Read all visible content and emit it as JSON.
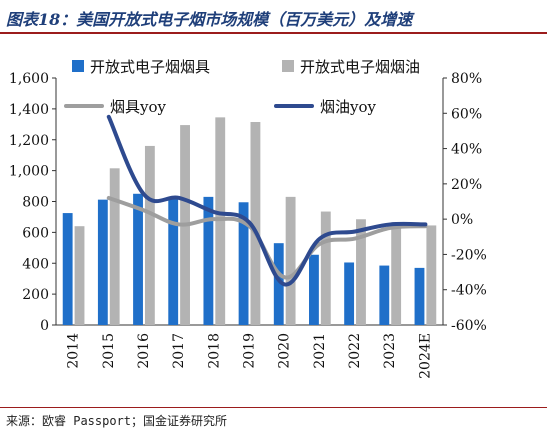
{
  "header": {
    "title": "图表18：美国开放式电子烟市场规模（百万美元）及增速"
  },
  "footer": {
    "source": "来源：欧睿 Passport；国金证券研究所"
  },
  "colors": {
    "bar_closed": "#1f6fc9",
    "bar_open": "#b3b3b3",
    "line_closed": "#9e9e9e",
    "line_open": "#2e4a8f",
    "accent": "#9b1c1c"
  },
  "chart_data": {
    "type": "bar",
    "title": "美国开放式电子烟市场规模（百万美元）及增速",
    "categories": [
      "2014",
      "2015",
      "2016",
      "2017",
      "2018",
      "2019",
      "2020",
      "2021",
      "2022",
      "2023",
      "2024E"
    ],
    "series": [
      {
        "name": "开放式电子烟烟具",
        "kind": "bar",
        "axis": "left",
        "values": [
          725,
          812,
          850,
          830,
          830,
          795,
          530,
          455,
          405,
          385,
          370
        ]
      },
      {
        "name": "开放式电子烟烟油",
        "kind": "bar",
        "axis": "left",
        "values": [
          640,
          1015,
          1160,
          1295,
          1345,
          1315,
          830,
          735,
          685,
          665,
          645
        ]
      },
      {
        "name": "烟具yoy",
        "kind": "line",
        "axis": "right",
        "values": [
          null,
          12,
          5,
          -3,
          0,
          -4,
          -33,
          -14,
          -11,
          -5,
          -4
        ]
      },
      {
        "name": "烟油yoy",
        "kind": "line",
        "axis": "right",
        "values": [
          null,
          58,
          14,
          12,
          4,
          -2,
          -37,
          -11,
          -7,
          -3,
          -3
        ]
      }
    ],
    "y_left": {
      "ylim": [
        0,
        1600
      ],
      "ticks": [
        "0",
        "200",
        "400",
        "600",
        "800",
        "1,000",
        "1,200",
        "1,400",
        "1,600"
      ]
    },
    "y_right": {
      "ylim": [
        -60,
        80
      ],
      "ticks": [
        "-60%",
        "-40%",
        "-20%",
        "0%",
        "20%",
        "40%",
        "60%",
        "80%"
      ]
    },
    "legend_placement": "top",
    "grid": false
  }
}
